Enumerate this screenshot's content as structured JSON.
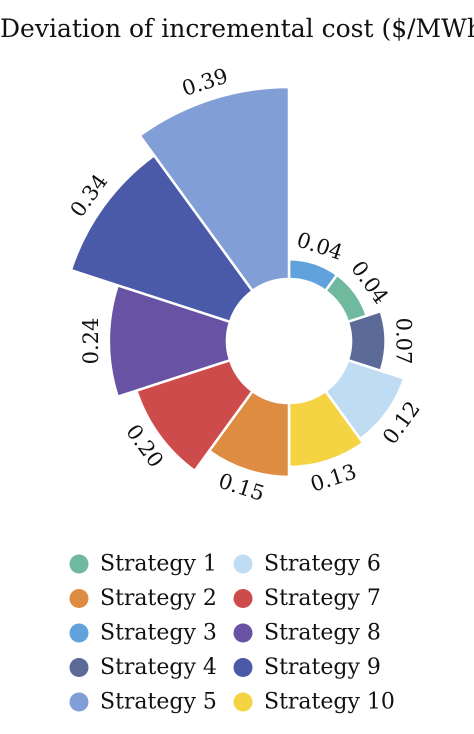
{
  "chart_data": {
    "type": "polar-bar",
    "title": "Deviation of incremental cost ($/MWh)",
    "legend_position": "bottom",
    "legend_columns": 2,
    "series": [
      {
        "name": "Strategy 1",
        "value": 0.04,
        "color": "#6fb99e"
      },
      {
        "name": "Strategy 2",
        "value": 0.15,
        "color": "#df8c43"
      },
      {
        "name": "Strategy 3",
        "value": 0.04,
        "color": "#62a2dc"
      },
      {
        "name": "Strategy 4",
        "value": 0.07,
        "color": "#5b6a96"
      },
      {
        "name": "Strategy 5",
        "value": 0.39,
        "color": "#819fd6"
      },
      {
        "name": "Strategy 6",
        "value": 0.12,
        "color": "#c0dcf2"
      },
      {
        "name": "Strategy 7",
        "value": 0.2,
        "color": "#ce4b4b"
      },
      {
        "name": "Strategy 8",
        "value": 0.24,
        "color": "#6852a4"
      },
      {
        "name": "Strategy 9",
        "value": 0.34,
        "color": "#4a5aa8"
      },
      {
        "name": "Strategy 10",
        "value": 0.13,
        "color": "#f5d444"
      }
    ],
    "clockwise_order": [
      "Strategy 3",
      "Strategy 1",
      "Strategy 4",
      "Strategy 6",
      "Strategy 10",
      "Strategy 2",
      "Strategy 7",
      "Strategy 8",
      "Strategy 9",
      "Strategy 5"
    ],
    "legend_order": [
      "Strategy 1",
      "Strategy 2",
      "Strategy 3",
      "Strategy 4",
      "Strategy 5",
      "Strategy 6",
      "Strategy 7",
      "Strategy 8",
      "Strategy 9",
      "Strategy 10"
    ]
  }
}
